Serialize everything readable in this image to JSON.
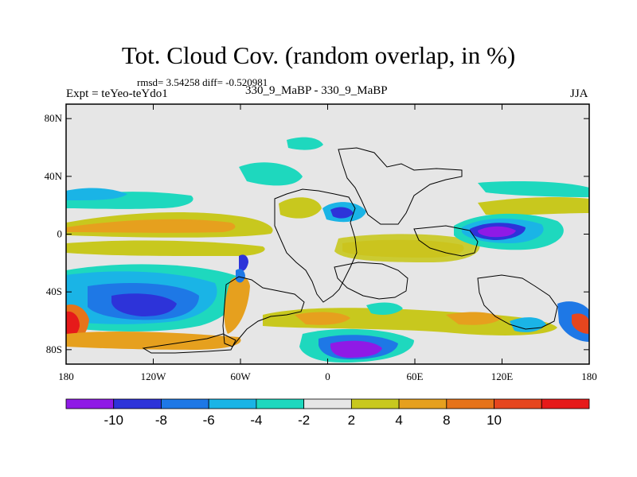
{
  "title": "Tot. Cloud Cov. (random overlap, in %)",
  "stats_line": "rmsd= 3.54258 diff= -0.520981",
  "subtitle": "330_9_MaBP - 330_9_MaBP",
  "experiment": "Expt = teYeo-teYdo1",
  "season": "JJA",
  "map": {
    "lat_ticks": [
      {
        "value": 80,
        "label": "80N"
      },
      {
        "value": 40,
        "label": "40N"
      },
      {
        "value": 0,
        "label": "0"
      },
      {
        "value": -40,
        "label": "40S"
      },
      {
        "value": -80,
        "label": "80S"
      }
    ],
    "lon_ticks": [
      {
        "value": -180,
        "label": "180"
      },
      {
        "value": -120,
        "label": "120W"
      },
      {
        "value": -60,
        "label": "60W"
      },
      {
        "value": 0,
        "label": "0"
      },
      {
        "value": 60,
        "label": "60E"
      },
      {
        "value": 120,
        "label": "120E"
      },
      {
        "value": 180,
        "label": "180"
      }
    ],
    "background_color": "#e6e6e6"
  },
  "colorbar": {
    "colors": [
      "#8f1ae6",
      "#2d33d9",
      "#1e78e6",
      "#1ab4e6",
      "#1ed8be",
      "#e6e6e6",
      "#c8c81e",
      "#e6a01e",
      "#e6731a",
      "#e6461e",
      "#e61a1a"
    ],
    "labels": [
      "-10",
      "-8",
      "-6",
      "-4",
      "-2",
      "2",
      "4",
      "8",
      "10"
    ]
  }
}
